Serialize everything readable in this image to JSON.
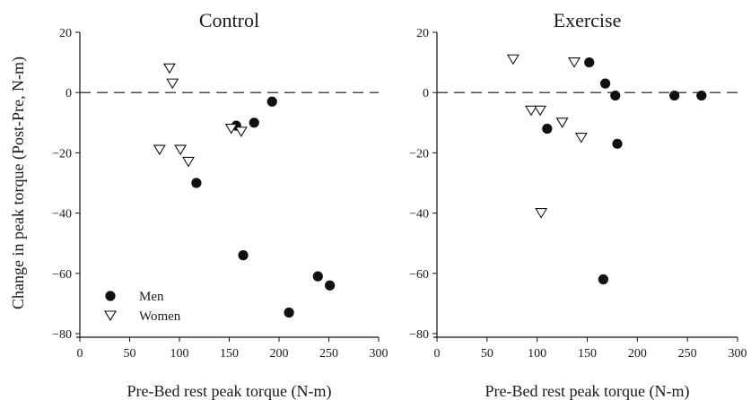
{
  "chart_data": [
    {
      "type": "scatter",
      "title": "Control",
      "xlabel": "Pre-Bed rest peak torque (N-m)",
      "ylabel": "Change in peak torque (Post-Pre, N-m)",
      "xlim": [
        0,
        300
      ],
      "ylim": [
        -80,
        20
      ],
      "xticks": [
        0,
        50,
        100,
        150,
        200,
        250,
        300
      ],
      "yticks": [
        20,
        0,
        -20,
        -40,
        -60,
        -80
      ],
      "reference_line": {
        "y": 0,
        "style": "dashed"
      },
      "grid": false,
      "legend_position": "bottom-left",
      "series": [
        {
          "name": "Men",
          "marker": "filled-circle",
          "color": "#111111",
          "points": [
            [
              157,
              -11
            ],
            [
              175,
              -10
            ],
            [
              193,
              -3
            ],
            [
              117,
              -30
            ],
            [
              164,
              -54
            ],
            [
              239,
              -61
            ],
            [
              251,
              -64
            ],
            [
              210,
              -73
            ]
          ]
        },
        {
          "name": "Women",
          "marker": "open-triangle-down",
          "color": "#111111",
          "points": [
            [
              90,
              8
            ],
            [
              93,
              3
            ],
            [
              80,
              -19
            ],
            [
              101,
              -19
            ],
            [
              109,
              -23
            ],
            [
              152,
              -12
            ],
            [
              162,
              -13
            ]
          ]
        }
      ]
    },
    {
      "type": "scatter",
      "title": "Exercise",
      "xlabel": "Pre-Bed rest peak torque (N-m)",
      "ylabel": "",
      "xlim": [
        0,
        300
      ],
      "ylim": [
        -80,
        20
      ],
      "xticks": [
        0,
        50,
        100,
        150,
        200,
        250,
        300
      ],
      "yticks": [
        20,
        0,
        -20,
        -40,
        -60,
        -80
      ],
      "reference_line": {
        "y": 0,
        "style": "dashed"
      },
      "grid": false,
      "series": [
        {
          "name": "Men",
          "marker": "filled-circle",
          "color": "#111111",
          "points": [
            [
              152,
              10
            ],
            [
              168,
              3
            ],
            [
              178,
              -1
            ],
            [
              237,
              -1
            ],
            [
              264,
              -1
            ],
            [
              110,
              -12
            ],
            [
              180,
              -17
            ],
            [
              166,
              -62
            ]
          ]
        },
        {
          "name": "Women",
          "marker": "open-triangle-down",
          "color": "#111111",
          "points": [
            [
              76,
              11
            ],
            [
              137,
              10
            ],
            [
              94,
              -6
            ],
            [
              103,
              -6
            ],
            [
              125,
              -10
            ],
            [
              144,
              -15
            ],
            [
              104,
              -40
            ]
          ]
        }
      ]
    }
  ]
}
